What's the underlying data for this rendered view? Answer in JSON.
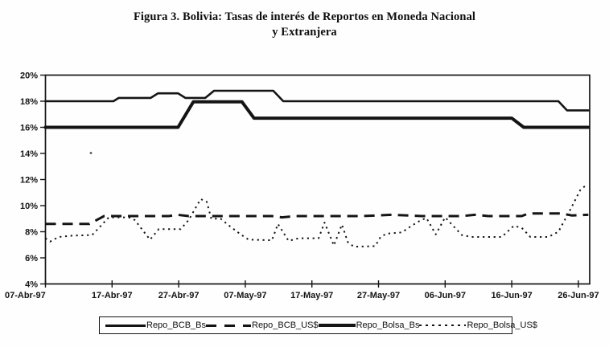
{
  "title": {
    "line1": "Figura 3. Bolivia: Tasas de interés de Reportos en Moneda Nacional",
    "line2": "y Extranjera"
  },
  "colors": {
    "ink": "#141414",
    "paper": "#fefefe"
  },
  "chart_data": {
    "type": "line",
    "title": "Figura 3. Bolivia: Tasas de interés de Reportos en Moneda Nacional y Extranjera",
    "xlabel": "",
    "ylabel": "",
    "grid": false,
    "legend_position": "bottom-outside",
    "ylim": [
      4,
      20
    ],
    "xlim_days": [
      0,
      81.7
    ],
    "y_ticks": [
      {
        "value": 20,
        "label": "20%"
      },
      {
        "value": 18,
        "label": "18%"
      },
      {
        "value": 16,
        "label": "16%"
      },
      {
        "value": 14,
        "label": "14%"
      },
      {
        "value": 12,
        "label": "12%"
      },
      {
        "value": 10,
        "label": "10%"
      },
      {
        "value": 8,
        "label": "8%"
      },
      {
        "value": 6,
        "label": "6%"
      },
      {
        "value": 4,
        "label": "4%"
      }
    ],
    "x_ticks": [
      {
        "day": 0,
        "label": "07-Abr-97"
      },
      {
        "day": 10,
        "label": "17-Abr-97"
      },
      {
        "day": 20,
        "label": "27-Abr-97"
      },
      {
        "day": 30,
        "label": "07-May-97"
      },
      {
        "day": 40,
        "label": "17-May-97"
      },
      {
        "day": 50,
        "label": "27-May-97"
      },
      {
        "day": 60,
        "label": "06-Jun-97"
      },
      {
        "day": 70,
        "label": "16-Jun-97"
      },
      {
        "day": 80,
        "label": "26-Jun-97"
      }
    ],
    "series": [
      {
        "name": "Repo_BCB_Bs",
        "style": "solid",
        "width": 2.6,
        "points": [
          [
            0,
            18
          ],
          [
            10.2,
            18
          ],
          [
            11,
            18.25
          ],
          [
            15.8,
            18.25
          ],
          [
            16.9,
            18.6
          ],
          [
            19.9,
            18.6
          ],
          [
            21,
            18.25
          ],
          [
            24,
            18.25
          ],
          [
            25.3,
            18.8
          ],
          [
            34.2,
            18.8
          ],
          [
            35.7,
            18
          ],
          [
            77,
            18
          ],
          [
            78.3,
            17.3
          ],
          [
            81.5,
            17.3
          ]
        ]
      },
      {
        "name": "Repo_BCB_US$",
        "style": "dashed",
        "width": 3,
        "points": [
          [
            0,
            8.6
          ],
          [
            6.6,
            8.6
          ],
          [
            8.8,
            9.2
          ],
          [
            18.5,
            9.2
          ],
          [
            19.8,
            9.3
          ],
          [
            21.5,
            9.2
          ],
          [
            34,
            9.2
          ],
          [
            35.5,
            9.1
          ],
          [
            37.5,
            9.2
          ],
          [
            47.5,
            9.2
          ],
          [
            52,
            9.3
          ],
          [
            56.5,
            9.2
          ],
          [
            62.5,
            9.2
          ],
          [
            64.5,
            9.3
          ],
          [
            66.5,
            9.2
          ],
          [
            71.5,
            9.2
          ],
          [
            72.5,
            9.4
          ],
          [
            77.5,
            9.4
          ],
          [
            79,
            9.25
          ],
          [
            81.5,
            9.3
          ]
        ]
      },
      {
        "name": "Repo_Bolsa_Bs",
        "style": "solid",
        "width": 4,
        "points": [
          [
            0,
            16
          ],
          [
            19.9,
            16
          ],
          [
            22.2,
            17.95
          ],
          [
            29.5,
            17.95
          ],
          [
            31.3,
            16.7
          ],
          [
            70,
            16.7
          ],
          [
            71.8,
            16
          ],
          [
            81.5,
            16
          ]
        ]
      },
      {
        "name": "Repo_Bolsa_US$",
        "style": "dotted",
        "width": 2,
        "points": [
          [
            0,
            7.5
          ],
          [
            0.7,
            7.25
          ],
          [
            2,
            7.6
          ],
          [
            4,
            7.7
          ],
          [
            7,
            7.75
          ],
          [
            9.5,
            9.1
          ],
          [
            12.5,
            9.1
          ],
          [
            13.4,
            8.9
          ],
          [
            15.7,
            7.4
          ],
          [
            17,
            8.2
          ],
          [
            20.3,
            8.2
          ],
          [
            21.5,
            8.9
          ],
          [
            23.3,
            10.5
          ],
          [
            24.2,
            10.3
          ],
          [
            24.9,
            9.0
          ],
          [
            26.3,
            9.0
          ],
          [
            27.5,
            8.5
          ],
          [
            29.3,
            7.8
          ],
          [
            30.5,
            7.4
          ],
          [
            34,
            7.35
          ],
          [
            34.9,
            8.6
          ],
          [
            36.5,
            7.3
          ],
          [
            38,
            7.5
          ],
          [
            41,
            7.5
          ],
          [
            41.9,
            8.7
          ],
          [
            43.3,
            6.95
          ],
          [
            44.5,
            8.55
          ],
          [
            45.4,
            7.2
          ],
          [
            46.3,
            6.85
          ],
          [
            49.5,
            6.9
          ],
          [
            50.3,
            7.6
          ],
          [
            51.2,
            7.85
          ],
          [
            53.5,
            7.95
          ],
          [
            55.1,
            8.5
          ],
          [
            56.4,
            8.9
          ],
          [
            57.2,
            9.05
          ],
          [
            58.6,
            7.8
          ],
          [
            60,
            9.1
          ],
          [
            62.5,
            7.75
          ],
          [
            64,
            7.6
          ],
          [
            68.5,
            7.6
          ],
          [
            70.3,
            8.45
          ],
          [
            71.5,
            8.3
          ],
          [
            72.8,
            7.6
          ],
          [
            75.5,
            7.6
          ],
          [
            77,
            8.0
          ],
          [
            78.6,
            9.5
          ],
          [
            80.3,
            11.2
          ],
          [
            81,
            11.5
          ]
        ]
      }
    ]
  },
  "legend": {
    "items": [
      "Repo_BCB_Bs",
      "Repo_BCB_US$",
      "Repo_Bolsa_Bs",
      "Repo_Bolsa_US$"
    ]
  }
}
